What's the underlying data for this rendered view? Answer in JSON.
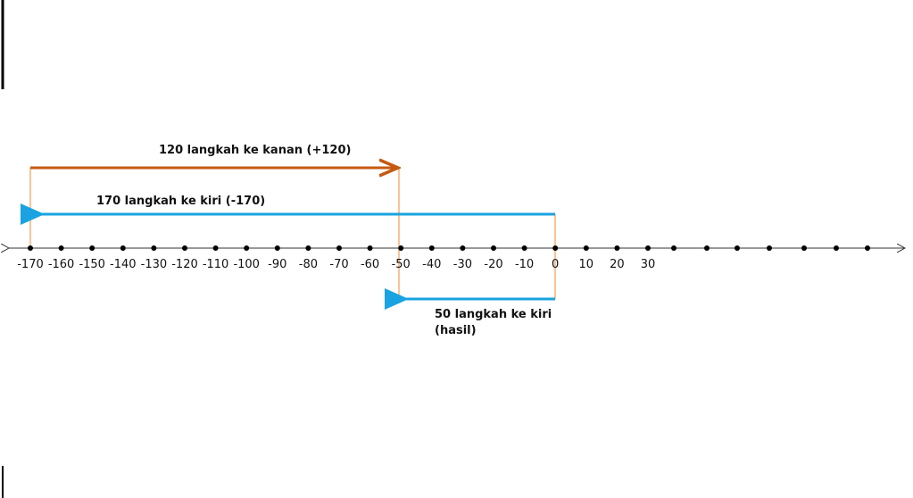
{
  "number_line": {
    "labels": [
      -170,
      -160,
      -150,
      -140,
      -130,
      -120,
      -110,
      -100,
      -90,
      -80,
      -70,
      -60,
      -50,
      -40,
      -30,
      -20,
      -10,
      0,
      10,
      20,
      30
    ]
  },
  "arrows": [
    {
      "label": "120 langkah ke kanan (+120)"
    },
    {
      "label": "170 langkah ke kiri (-170)"
    },
    {
      "label_lines": [
        "50 langkah ke kiri",
        "(hasil)"
      ]
    }
  ]
}
